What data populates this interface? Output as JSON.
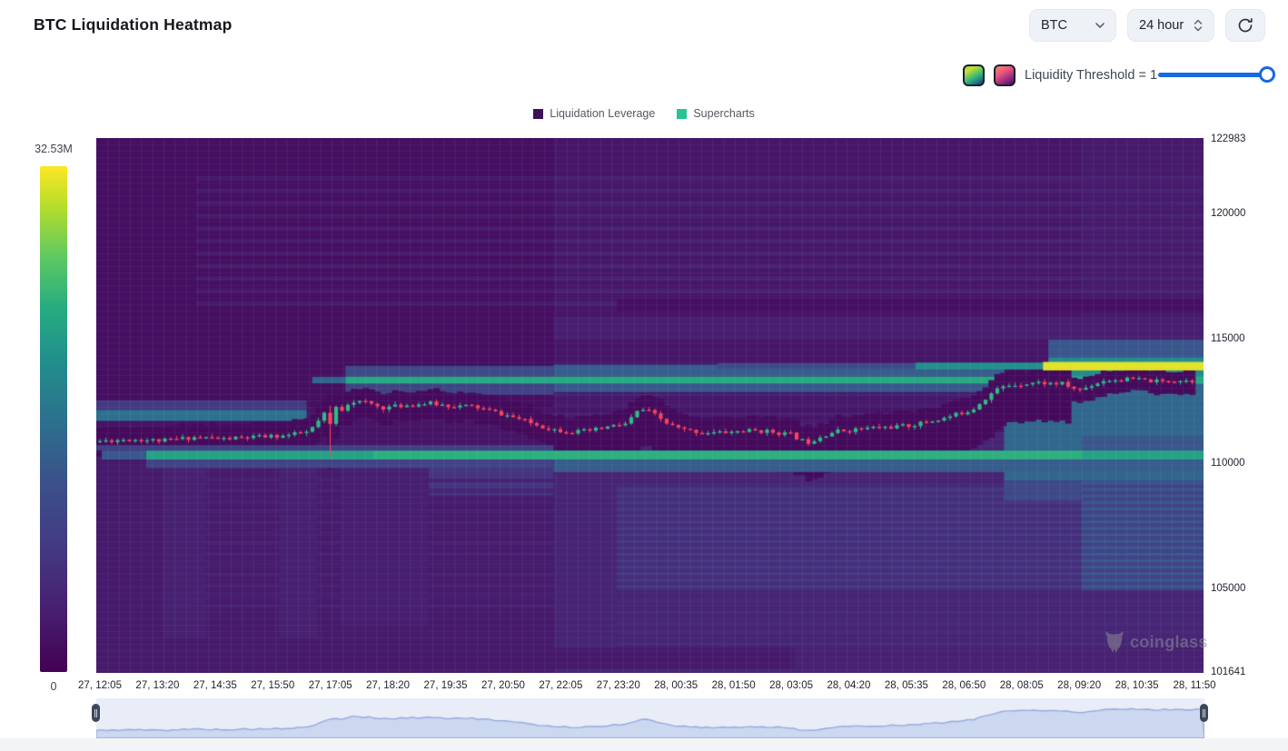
{
  "header": {
    "title": "BTC Liquidation Heatmap"
  },
  "controls": {
    "symbol": "BTC",
    "interval": "24 hour",
    "threshold_label": "Liquidity Threshold = 1",
    "threshold_value": 1
  },
  "legend": [
    {
      "label": "Liquidation Leverage",
      "color": "#3d1059"
    },
    {
      "label": "Supercharts",
      "color": "#2bc195"
    }
  ],
  "colorbar": {
    "max_label": "32.53M",
    "min_label": "0",
    "min": 0,
    "max": 32530000
  },
  "watermark": "coinglass",
  "chart_data": {
    "type": "heatmap",
    "title": "BTC Liquidation Heatmap",
    "y_axis": {
      "ticks": [
        122983,
        120000,
        115000,
        110000,
        105000,
        101641
      ],
      "min": 101600,
      "max": 123030
    },
    "x_labels": [
      "27, 12:05",
      "27, 13:20",
      "27, 14:35",
      "27, 15:50",
      "27, 17:05",
      "27, 18:20",
      "27, 19:35",
      "27, 20:50",
      "27, 22:05",
      "27, 23:20",
      "28, 00:35",
      "28, 01:50",
      "28, 03:05",
      "28, 04:20",
      "28, 05:35",
      "28, 06:50",
      "28, 08:05",
      "28, 09:20",
      "28, 10:35",
      "28, 11:50"
    ],
    "legend_series": [
      "Liquidation Leverage",
      "Supercharts"
    ],
    "grid": true,
    "candle_colors": {
      "up": "#2ebd85",
      "down": "#f6465d"
    },
    "price_path": [
      [
        0.0,
        110880
      ],
      [
        0.03,
        110960
      ],
      [
        0.06,
        110900
      ],
      [
        0.09,
        111050
      ],
      [
        0.115,
        110980
      ],
      [
        0.145,
        111050
      ],
      [
        0.17,
        111100
      ],
      [
        0.192,
        111250
      ],
      [
        0.205,
        111900
      ],
      [
        0.212,
        112300
      ],
      [
        0.222,
        112150
      ],
      [
        0.229,
        112500
      ],
      [
        0.245,
        112420
      ],
      [
        0.258,
        112220
      ],
      [
        0.27,
        112280
      ],
      [
        0.285,
        112350
      ],
      [
        0.3,
        112400
      ],
      [
        0.32,
        112300
      ],
      [
        0.34,
        112280
      ],
      [
        0.36,
        112050
      ],
      [
        0.38,
        111800
      ],
      [
        0.4,
        111500
      ],
      [
        0.414,
        111350
      ],
      [
        0.43,
        111250
      ],
      [
        0.446,
        111300
      ],
      [
        0.465,
        111480
      ],
      [
        0.479,
        111580
      ],
      [
        0.488,
        112050
      ],
      [
        0.495,
        112150
      ],
      [
        0.504,
        111950
      ],
      [
        0.515,
        111600
      ],
      [
        0.528,
        111350
      ],
      [
        0.545,
        111250
      ],
      [
        0.561,
        111220
      ],
      [
        0.58,
        111280
      ],
      [
        0.594,
        111310
      ],
      [
        0.61,
        111260
      ],
      [
        0.627,
        111150
      ],
      [
        0.638,
        110900
      ],
      [
        0.643,
        110850
      ],
      [
        0.655,
        111100
      ],
      [
        0.668,
        111280
      ],
      [
        0.685,
        111350
      ],
      [
        0.7,
        111420
      ],
      [
        0.716,
        111450
      ],
      [
        0.733,
        111500
      ],
      [
        0.75,
        111650
      ],
      [
        0.766,
        111800
      ],
      [
        0.78,
        112000
      ],
      [
        0.791,
        112150
      ],
      [
        0.8,
        112500
      ],
      [
        0.807,
        112750
      ],
      [
        0.815,
        113000
      ],
      [
        0.824,
        113120
      ],
      [
        0.835,
        113180
      ],
      [
        0.848,
        113230
      ],
      [
        0.86,
        113200
      ],
      [
        0.873,
        113180
      ],
      [
        0.882,
        113000
      ],
      [
        0.889,
        112930
      ],
      [
        0.897,
        113100
      ],
      [
        0.91,
        113320
      ],
      [
        0.925,
        113350
      ],
      [
        0.939,
        113370
      ],
      [
        0.95,
        113300
      ],
      [
        0.963,
        113270
      ],
      [
        0.971,
        113320
      ],
      [
        0.979,
        113330
      ],
      [
        0.99,
        113300
      ],
      [
        1.0,
        113280
      ]
    ],
    "spike": {
      "frac": 0.212,
      "low": 110280
    },
    "bands_bg": [
      [
        0,
        1,
        101600,
        123030,
        0.055
      ],
      [
        0,
        0.413,
        101600,
        110800,
        0.1
      ],
      [
        0.413,
        1,
        101600,
        111250,
        0.145
      ],
      [
        0.413,
        1,
        111250,
        123030,
        0.085
      ],
      [
        0.89,
        1,
        111250,
        123030,
        0.1
      ],
      [
        0,
        0.413,
        110800,
        112250,
        0.075
      ],
      [
        0.47,
        0.89,
        104900,
        109100,
        0.19
      ],
      [
        0.89,
        1,
        104900,
        109400,
        0.3
      ],
      [
        0.17,
        0.63,
        101750,
        102600,
        0.095
      ],
      [
        0.63,
        1,
        101750,
        102600,
        0.13
      ],
      [
        0.3,
        0.413,
        108700,
        110000,
        0.22
      ],
      [
        0.06,
        0.1,
        103000,
        109800,
        0.13
      ],
      [
        0.165,
        0.2,
        103000,
        109800,
        0.13
      ],
      [
        0.22,
        0.3,
        103500,
        109800,
        0.12
      ],
      [
        0.413,
        1,
        114950,
        115850,
        0.12
      ]
    ],
    "stripe_groups": [
      [
        0.09,
        1,
        116300,
        121400,
        500,
        200,
        0.1
      ],
      [
        0.413,
        1,
        116300,
        121400,
        500,
        200,
        0.13
      ],
      [
        0.47,
        0.89,
        105000,
        109050,
        260,
        110,
        0.24
      ],
      [
        0.89,
        1,
        105000,
        109420,
        260,
        110,
        0.4
      ],
      [
        0.09,
        0.413,
        104200,
        109500,
        420,
        150,
        0.125
      ],
      [
        0.47,
        1,
        102700,
        104800,
        420,
        150,
        0.17
      ],
      [
        0.413,
        1,
        111500,
        112900,
        380,
        150,
        0.12
      ]
    ],
    "bands_mid": [
      [
        0.47,
        1,
        116050,
        116600,
        0.055
      ],
      [
        0.82,
        1,
        109300,
        113500,
        0.46
      ],
      [
        0.82,
        0.89,
        108500,
        109300,
        0.33
      ],
      [
        0.86,
        1,
        113450,
        114250,
        0.6
      ],
      [
        0.86,
        1,
        114250,
        114950,
        0.4
      ],
      [
        0.195,
        0.225,
        113200,
        113460,
        0.45
      ],
      [
        0.225,
        1,
        113180,
        113480,
        0.71
      ],
      [
        0.225,
        0.413,
        113480,
        113900,
        0.33
      ],
      [
        0.413,
        0.82,
        113480,
        113950,
        0.42
      ],
      [
        0.225,
        0.413,
        112750,
        113180,
        0.3
      ],
      [
        0.413,
        0.82,
        112850,
        113180,
        0.4
      ],
      [
        0,
        0.19,
        111700,
        112140,
        0.5
      ],
      [
        0,
        0.19,
        112140,
        112520,
        0.25
      ],
      [
        0.89,
        1,
        110510,
        111100,
        0.4
      ]
    ],
    "corridor": [
      [
        0,
        0.41,
        450,
        520
      ],
      [
        0.41,
        0.88,
        480,
        1400
      ],
      [
        0.88,
        1.01,
        330,
        420
      ]
    ],
    "bands_post": [
      [
        0.561,
        0.74,
        113770,
        114010,
        0.35
      ],
      [
        0.74,
        0.855,
        113760,
        114030,
        0.62
      ],
      [
        0.855,
        1.0,
        113720,
        114060,
        0.97
      ],
      [
        0.045,
        1,
        110150,
        110510,
        0.68
      ],
      [
        0.25,
        0.89,
        110170,
        110490,
        0.73
      ],
      [
        0.005,
        0.045,
        110150,
        110510,
        0.4
      ],
      [
        0.413,
        1,
        109650,
        110150,
        0.42
      ],
      [
        0.045,
        0.413,
        109800,
        110150,
        0.3
      ],
      [
        0,
        0.413,
        110510,
        110720,
        0.28
      ]
    ],
    "navigator": {
      "bg": "#e9edf8",
      "line": "#96abde",
      "fill": "#ccd7f0",
      "p_min": 110500,
      "p_max": 113650
    }
  }
}
